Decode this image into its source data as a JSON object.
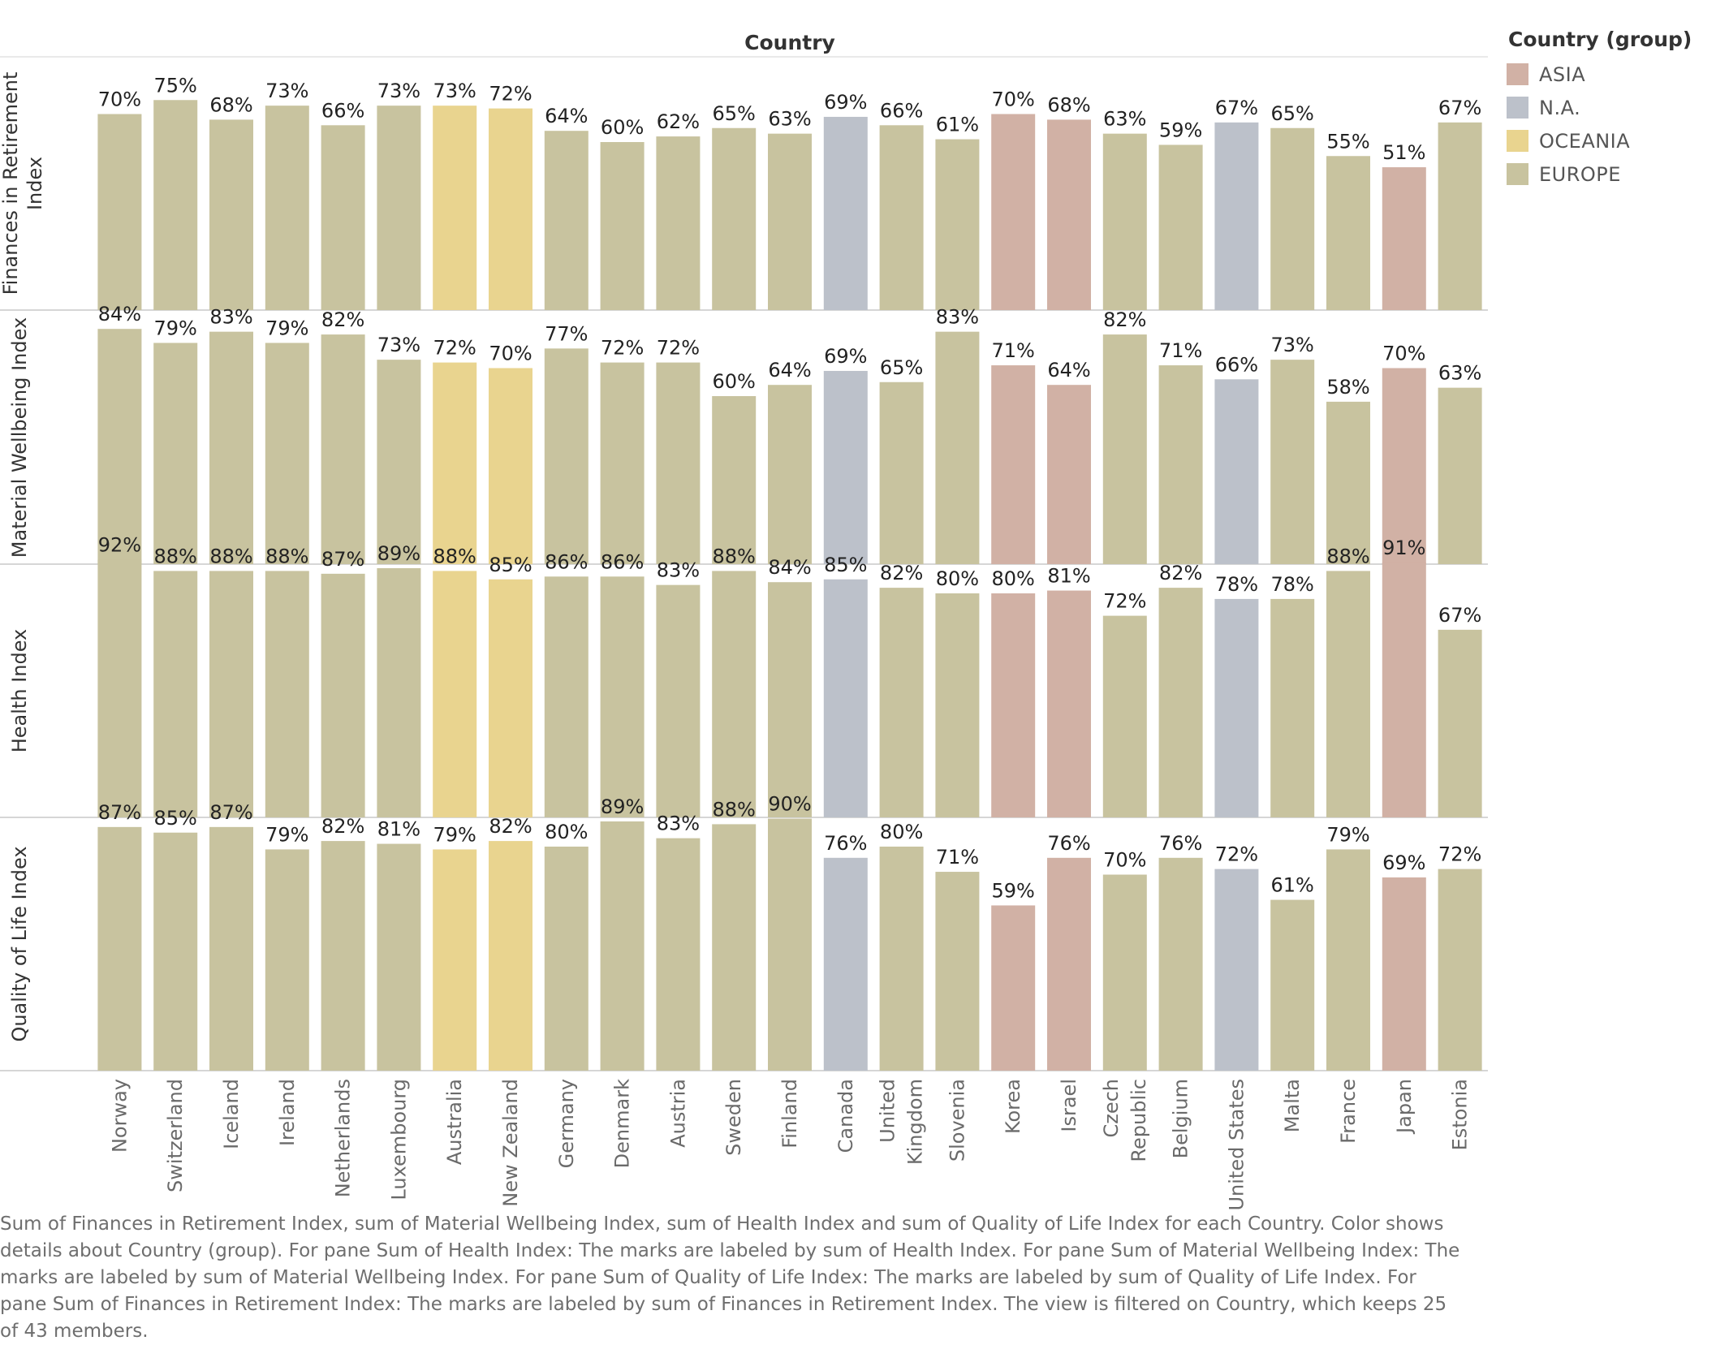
{
  "chart_data": {
    "type": "bar",
    "x_header": "Country",
    "categories": [
      "Norway",
      "Switzerland",
      "Iceland",
      "Ireland",
      "Netherlands",
      "Luxembourg",
      "Australia",
      "New Zealand",
      "Germany",
      "Denmark",
      "Austria",
      "Sweden",
      "Finland",
      "Canada",
      "United Kingdom",
      "Slovenia",
      "Korea",
      "Israel",
      "Czech Republic",
      "Belgium",
      "United States",
      "Malta",
      "France",
      "Japan",
      "Estonia"
    ],
    "category_lines": [
      [
        "Norway"
      ],
      [
        "Switzerland"
      ],
      [
        "Iceland"
      ],
      [
        "Ireland"
      ],
      [
        "Netherlands"
      ],
      [
        "Luxembourg"
      ],
      [
        "Australia"
      ],
      [
        "New Zealand"
      ],
      [
        "Germany"
      ],
      [
        "Denmark"
      ],
      [
        "Austria"
      ],
      [
        "Sweden"
      ],
      [
        "Finland"
      ],
      [
        "Canada"
      ],
      [
        "United",
        "Kingdom"
      ],
      [
        "Slovenia"
      ],
      [
        "Korea"
      ],
      [
        "Israel"
      ],
      [
        "Czech",
        "Republic"
      ],
      [
        "Belgium"
      ],
      [
        "United States"
      ],
      [
        "Malta"
      ],
      [
        "France"
      ],
      [
        "Japan"
      ],
      [
        "Estonia"
      ]
    ],
    "groups": [
      "EUROPE",
      "EUROPE",
      "EUROPE",
      "EUROPE",
      "EUROPE",
      "EUROPE",
      "OCEANIA",
      "OCEANIA",
      "EUROPE",
      "EUROPE",
      "EUROPE",
      "EUROPE",
      "EUROPE",
      "N.A.",
      "EUROPE",
      "EUROPE",
      "ASIA",
      "ASIA",
      "EUROPE",
      "EUROPE",
      "N.A.",
      "EUROPE",
      "EUROPE",
      "ASIA",
      "EUROPE"
    ],
    "series": [
      {
        "name": "Finances in Retirement Index",
        "label_lines": [
          "Finances in Retirement",
          "Index"
        ],
        "values": [
          70,
          75,
          68,
          73,
          66,
          73,
          73,
          72,
          64,
          60,
          62,
          65,
          63,
          69,
          66,
          61,
          70,
          68,
          63,
          59,
          67,
          65,
          55,
          51,
          67
        ]
      },
      {
        "name": "Material Wellbeing Index",
        "label_lines": [
          "Material Wellbeing Index"
        ],
        "values": [
          84,
          79,
          83,
          79,
          82,
          73,
          72,
          70,
          77,
          72,
          72,
          60,
          64,
          69,
          65,
          83,
          71,
          64,
          82,
          71,
          66,
          73,
          58,
          70,
          63
        ]
      },
      {
        "name": "Health Index",
        "label_lines": [
          "Health Index"
        ],
        "values": [
          92,
          88,
          88,
          88,
          87,
          89,
          88,
          85,
          86,
          86,
          83,
          88,
          84,
          85,
          82,
          80,
          80,
          81,
          72,
          82,
          78,
          78,
          88,
          91,
          67
        ]
      },
      {
        "name": "Quality of Life Index",
        "label_lines": [
          "Quality of Life Index"
        ],
        "values": [
          87,
          85,
          87,
          79,
          82,
          81,
          79,
          82,
          80,
          89,
          83,
          88,
          90,
          76,
          80,
          71,
          59,
          76,
          70,
          76,
          72,
          61,
          79,
          69,
          72
        ]
      }
    ],
    "value_suffix": "%",
    "ylim": [
      0,
      100
    ],
    "grid": false,
    "legend": {
      "title": "Country (group)",
      "placement": "top-right",
      "items": [
        {
          "label": "ASIA",
          "color": "#d1b1a5"
        },
        {
          "label": "N.A.",
          "color": "#bcc1ca"
        },
        {
          "label": "OCEANIA",
          "color": "#e9d48f"
        },
        {
          "label": "EUROPE",
          "color": "#c8c39f"
        }
      ]
    }
  },
  "caption": "Sum of Finances in Retirement Index, sum of Material Wellbeing Index, sum of Health Index and sum of Quality of Life Index for each Country.  Color shows details about Country (group).  For pane Sum of Health Index:  The marks are labeled by sum of Health Index.  For pane Sum of Material Wellbeing Index:  The marks are labeled by sum of Material Wellbeing Index.  For pane Sum of Quality of Life Index:  The marks are labeled by sum of Quality of Life Index.  For pane Sum of Finances in Retirement Index: The marks are labeled by sum of Finances in Retirement Index. The view is filtered on Country, which keeps 25 of 43 members."
}
